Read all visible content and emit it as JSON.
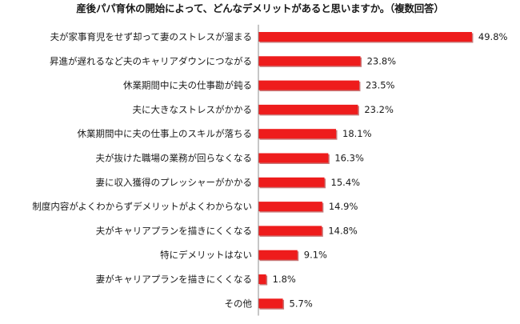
{
  "chart_data": {
    "type": "bar",
    "orientation": "horizontal",
    "title": "産後パパ育休の開始によって、どんなデメリットがあると思いますか。（複数回答）",
    "categories": [
      "夫が家事育児をせず却って妻のストレスが溜まる",
      "昇進が遅れるなど夫のキャリアダウンにつながる",
      "休業期間中に夫の仕事勘が鈍る",
      "夫に大きなストレスがかかる",
      "休業期間中に夫の仕事上のスキルが落ちる",
      "夫が抜けた職場の業務が回らなくなる",
      "妻に収入獲得のプレッシャーがかかる",
      "制度内容がよくわからずデメリットがよくわからない",
      "夫がキャリアプランを描きにくくなる",
      "特にデメリットはない",
      "妻がキャリアプランを描きにくくなる",
      "その他"
    ],
    "values": [
      49.8,
      23.8,
      23.5,
      23.2,
      18.1,
      16.3,
      15.4,
      14.9,
      14.8,
      9.1,
      1.8,
      5.7
    ],
    "value_labels": [
      "49.8%",
      "23.8%",
      "23.5%",
      "23.2%",
      "18.1%",
      "16.3%",
      "15.4%",
      "14.9%",
      "14.8%",
      "9.1%",
      "1.8%",
      "5.7%"
    ],
    "value_suffix": "%",
    "xlim": [
      0,
      50
    ],
    "grid": false,
    "legend": "none",
    "bar_color": "#ee1c1c",
    "bar_shadow_color": "#9b0a0a",
    "axis_color": "#8c8c8c"
  }
}
